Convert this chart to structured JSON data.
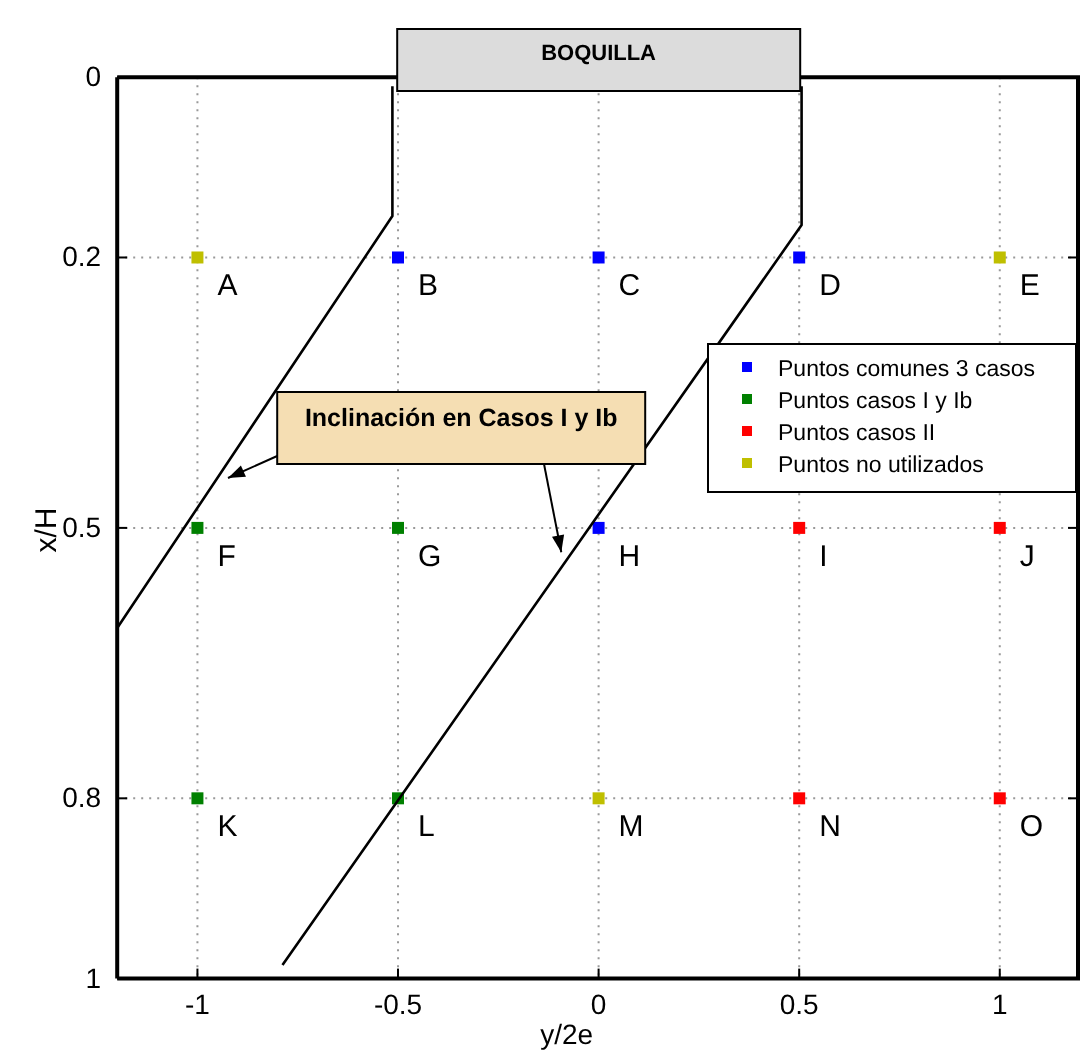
{
  "chart_data": {
    "type": "scatter",
    "xlabel": "y/2e",
    "ylabel": "x/H",
    "xlim": [
      -1.2,
      1.2
    ],
    "ylim": [
      1,
      0
    ],
    "xticks": [
      -1,
      -0.5,
      0,
      0.5,
      1
    ],
    "yticks": [
      0,
      0.2,
      0.5,
      0.8,
      1
    ],
    "grid": true,
    "legend": "right",
    "marker": "square",
    "annotations": [
      "BOQUILLA",
      {
        "text": "Inclinación en Casos I y Ib",
        "x": -0.093,
        "y": 0.527
      }
    ],
    "series": [
      {
        "name": "Puntos comunes 3 casos",
        "color": "#0000ff",
        "x": [
          -0.5,
          0,
          0.5,
          0
        ],
        "values": [
          0.2,
          0.2,
          0.2,
          0.5
        ],
        "value_labels": [
          "B",
          "C",
          "D",
          "H"
        ]
      },
      {
        "name": "Puntos casos I y Ib",
        "color": "#008000",
        "x": [
          -1,
          -0.5,
          -1,
          -0.5
        ],
        "values": [
          0.5,
          0.5,
          0.8,
          0.8
        ],
        "value_labels": [
          "F",
          "G",
          "K",
          "L"
        ]
      },
      {
        "name": "Puntos casos II",
        "color": "#ff0000",
        "x": [
          0.5,
          1,
          0.5,
          1
        ],
        "values": [
          0.5,
          0.5,
          0.8,
          0.8
        ],
        "value_labels": [
          "I",
          "J",
          "N",
          "O"
        ]
      },
      {
        "name": "Puntos no utilizados",
        "color": "#bfbf00",
        "x": [
          -1,
          1,
          0
        ],
        "values": [
          0.2,
          0.2,
          0.8
        ],
        "value_labels": [
          "A",
          "E",
          "M"
        ]
      },
      {
        "type": "line",
        "color": "#000000",
        "marker": "none",
        "line_style": "solid",
        "x": [
          -0.514,
          -0.514,
          -1.2
        ],
        "values": [
          0.01,
          0.154,
          0.611
        ]
      },
      {
        "type": "line",
        "color": "#000000",
        "marker": "none",
        "line_style": "solid",
        "x": [
          0.506,
          0.506,
          -0.788
        ],
        "values": [
          0.01,
          0.164,
          0.985
        ]
      }
    ]
  }
}
